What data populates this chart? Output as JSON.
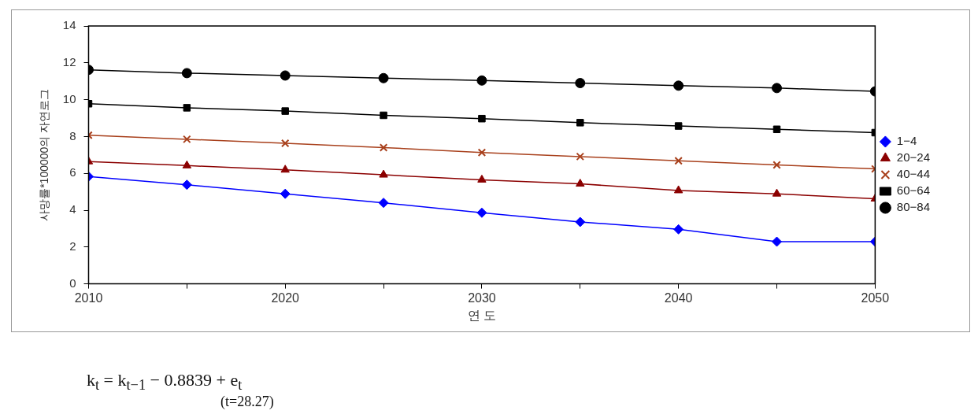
{
  "chart_data": {
    "type": "line",
    "xlabel": "연 도",
    "ylabel": "사망률*100000의 자연로그",
    "x": [
      2010,
      2015,
      2020,
      2025,
      2030,
      2035,
      2040,
      2045,
      2050
    ],
    "xlim": [
      2010,
      2050
    ],
    "xticks": [
      2010,
      {
        "value": 2015,
        "label": null
      },
      2020,
      {
        "value": 2025,
        "label": null
      },
      2030,
      {
        "value": 2035,
        "label": null
      },
      2040,
      {
        "value": 2045,
        "label": null
      },
      2050
    ],
    "ylim": [
      0,
      14
    ],
    "yticks": [
      0,
      2,
      4,
      6,
      8,
      10,
      12,
      14
    ],
    "grid": false,
    "legend": "right",
    "line_style": "solid",
    "series": [
      {
        "name": "1−4",
        "color": "#0000ff",
        "marker": "diamond",
        "values": [
          5.83,
          5.38,
          4.89,
          4.4,
          3.86,
          3.36,
          2.96,
          2.29,
          2.29
        ]
      },
      {
        "name": "20−24",
        "color": "#8b0000",
        "marker": "triangle",
        "values": [
          6.64,
          6.42,
          6.19,
          5.92,
          5.65,
          5.43,
          5.07,
          4.89,
          4.62
        ]
      },
      {
        "name": "40−44",
        "color": "#a8401c",
        "marker": "cross",
        "values": [
          8.07,
          7.85,
          7.63,
          7.4,
          7.13,
          6.91,
          6.68,
          6.46,
          6.24
        ]
      },
      {
        "name": "60−64",
        "color": "#000000",
        "marker": "square",
        "values": [
          9.78,
          9.56,
          9.38,
          9.15,
          8.97,
          8.75,
          8.57,
          8.39,
          8.21
        ]
      },
      {
        "name": "80−84",
        "color": "#000000",
        "marker": "circle",
        "values": [
          11.62,
          11.44,
          11.31,
          11.17,
          11.04,
          10.9,
          10.76,
          10.63,
          10.45
        ]
      }
    ],
    "annotations": [
      "k$_{t}$ = k$_{t−1}$ − 0.8839 + e$_{t}$",
      "(t=28.27)"
    ]
  }
}
